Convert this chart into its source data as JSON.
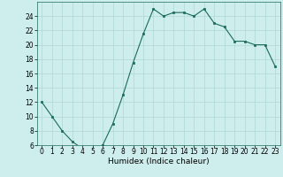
{
  "x": [
    0,
    1,
    2,
    3,
    4,
    5,
    6,
    7,
    8,
    9,
    10,
    11,
    12,
    13,
    14,
    15,
    16,
    17,
    18,
    19,
    20,
    21,
    22,
    23
  ],
  "y": [
    12,
    10,
    8,
    6.5,
    5.5,
    5.5,
    6,
    9,
    13,
    17.5,
    21.5,
    25,
    24,
    24.5,
    24.5,
    24,
    25,
    23,
    22.5,
    20.5,
    20.5,
    20,
    20,
    17
  ],
  "line_color": "#1a6b5a",
  "marker": "s",
  "marker_size": 2,
  "bg_color": "#cdeeed",
  "grid_color": "#b0d8d4",
  "xlabel": "Humidex (Indice chaleur)",
  "xlim": [
    -0.5,
    23.5
  ],
  "ylim": [
    6,
    26
  ],
  "yticks": [
    6,
    8,
    10,
    12,
    14,
    16,
    18,
    20,
    22,
    24
  ],
  "xticks": [
    0,
    1,
    2,
    3,
    4,
    5,
    6,
    7,
    8,
    9,
    10,
    11,
    12,
    13,
    14,
    15,
    16,
    17,
    18,
    19,
    20,
    21,
    22,
    23
  ],
  "xlabel_fontsize": 6.5,
  "tick_fontsize": 5.5,
  "linewidth": 0.8
}
